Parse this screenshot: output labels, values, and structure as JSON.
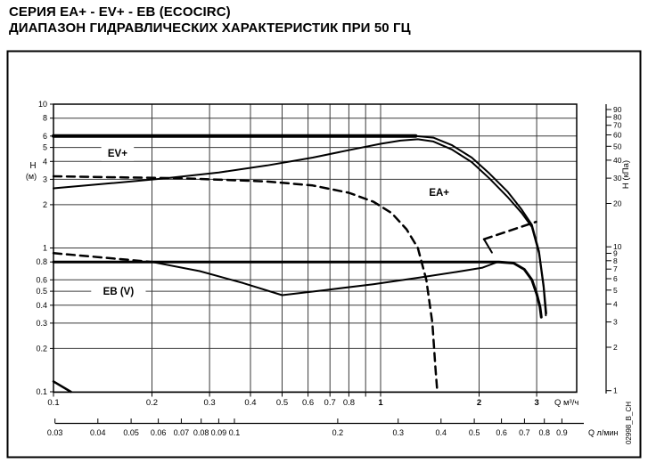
{
  "page": {
    "title_line1": "СЕРИЯ EA+ - EV+ - EB (ECOCIRC)",
    "title_line2": "ДИАПАЗОН ГИДРАВЛИЧЕСКИХ ХАРАКТЕРИСТИК ПРИ 50 ГЦ",
    "watermark": "02998_B_CH"
  },
  "chart_data": {
    "type": "line",
    "scale": "log-log",
    "title": "",
    "xlabel": "Q м³/ч",
    "xlabel_secondary": "Q л/мин",
    "ylabel_left": "H",
    "ylabel_left_unit": "(м)",
    "ylabel_right": "H (кПа)",
    "xlim": [
      0.1,
      4.0
    ],
    "ylim": [
      0.1,
      10
    ],
    "grid": true,
    "legend": "none",
    "grid_color": "#3a3a3a",
    "curve_color": "#000000",
    "x_gridlines": [
      0.1,
      0.2,
      0.3,
      0.4,
      0.5,
      0.6,
      0.7,
      0.8,
      0.9,
      1,
      2,
      3
    ],
    "x_ticks_m3h": [
      0.1,
      0.2,
      0.3,
      0.4,
      0.5,
      0.6,
      0.7,
      0.8,
      1,
      2,
      3
    ],
    "x_ticks_lmin": [
      0.03,
      0.04,
      0.05,
      0.06,
      0.07,
      0.08,
      0.09,
      0.1,
      0.2,
      0.3,
      0.4,
      0.5,
      0.6,
      0.7,
      0.8,
      0.9
    ],
    "y_ticks_m": [
      10,
      8,
      6,
      5,
      4,
      3,
      2,
      1,
      0.8,
      0.6,
      0.5,
      0.4,
      0.3,
      0.2,
      0.1
    ],
    "y_ticks_kpa": [
      90,
      80,
      70,
      60,
      50,
      40,
      30,
      20,
      10,
      9,
      8,
      7,
      6,
      5,
      4,
      3,
      2,
      1
    ],
    "series": [
      {
        "id": "ev-flat-top",
        "label": "EV+ upper limit 6 m",
        "style": "solid",
        "width": 4,
        "points": [
          [
            0.1,
            6
          ],
          [
            1.28,
            6
          ]
        ]
      },
      {
        "id": "envelope-right",
        "label": "family envelope right edge",
        "style": "solid",
        "width": 2,
        "points": [
          [
            1.28,
            6
          ],
          [
            1.45,
            5.85
          ],
          [
            1.65,
            5.2
          ],
          [
            1.9,
            4.25
          ],
          [
            2.15,
            3.3
          ],
          [
            2.45,
            2.45
          ],
          [
            2.7,
            1.85
          ],
          [
            2.9,
            1.45
          ],
          [
            3.05,
            0.95
          ],
          [
            3.15,
            0.55
          ],
          [
            3.21,
            0.35
          ]
        ]
      },
      {
        "id": "ea-max",
        "label": "EA+ max curve",
        "style": "solid",
        "width": 2,
        "points": [
          [
            0.1,
            2.6
          ],
          [
            0.15,
            2.82
          ],
          [
            0.22,
            3.05
          ],
          [
            0.32,
            3.35
          ],
          [
            0.45,
            3.75
          ],
          [
            0.62,
            4.25
          ],
          [
            0.82,
            4.85
          ],
          [
            1.0,
            5.3
          ],
          [
            1.15,
            5.58
          ],
          [
            1.3,
            5.7
          ],
          [
            1.45,
            5.5
          ],
          [
            1.65,
            4.85
          ],
          [
            1.9,
            3.95
          ],
          [
            2.15,
            3.05
          ],
          [
            2.45,
            2.25
          ],
          [
            2.7,
            1.75
          ],
          [
            2.9,
            1.4
          ],
          [
            3.05,
            0.92
          ],
          [
            3.15,
            0.53
          ],
          [
            3.2,
            0.34
          ]
        ]
      },
      {
        "id": "ev-max-dashed",
        "label": "EV+ max curve",
        "style": "dashed",
        "width": 2.5,
        "points": [
          [
            0.1,
            3.15
          ],
          [
            0.25,
            3.05
          ],
          [
            0.45,
            2.9
          ],
          [
            0.62,
            2.72
          ],
          [
            0.8,
            2.42
          ],
          [
            0.95,
            2.1
          ],
          [
            1.08,
            1.75
          ],
          [
            1.2,
            1.35
          ],
          [
            1.3,
            1.0
          ],
          [
            1.38,
            0.6
          ],
          [
            1.44,
            0.3
          ],
          [
            1.47,
            0.15
          ],
          [
            1.49,
            0.1
          ]
        ]
      },
      {
        "id": "ea-step-dashed",
        "label": "dashed step right",
        "style": "dashed",
        "width": 2.5,
        "points": [
          [
            2.07,
            1.15
          ],
          [
            2.99,
            1.52
          ]
        ]
      },
      {
        "id": "ea-step-solid",
        "label": "step connector",
        "style": "solid",
        "width": 2,
        "points": [
          [
            2.07,
            1.15
          ],
          [
            2.19,
            0.93
          ]
        ]
      },
      {
        "id": "eb-max-dashed",
        "label": "EB dashed limit",
        "style": "dashed",
        "width": 2.5,
        "points": [
          [
            0.1,
            0.92
          ],
          [
            0.2,
            0.8
          ]
        ]
      },
      {
        "id": "eb-top",
        "label": "EB upper limit 0.8 m",
        "style": "solid",
        "width": 3,
        "points": [
          [
            0.1,
            0.8
          ],
          [
            2.3,
            0.8
          ],
          [
            2.55,
            0.785
          ],
          [
            2.75,
            0.71
          ],
          [
            2.9,
            0.6
          ],
          [
            3.0,
            0.48
          ],
          [
            3.07,
            0.39
          ],
          [
            3.1,
            0.33
          ]
        ]
      },
      {
        "id": "eb-min",
        "label": "EB min curve",
        "style": "solid",
        "width": 2,
        "points": [
          [
            0.2,
            0.8
          ],
          [
            0.28,
            0.69
          ],
          [
            0.38,
            0.57
          ],
          [
            0.5,
            0.47
          ],
          [
            0.68,
            0.51
          ],
          [
            0.95,
            0.56
          ],
          [
            1.3,
            0.62
          ],
          [
            1.7,
            0.68
          ],
          [
            2.05,
            0.73
          ],
          [
            2.25,
            0.79
          ]
        ]
      },
      {
        "id": "corner-min",
        "label": "lower-left corner snippet",
        "style": "solid",
        "width": 2.5,
        "points": [
          [
            0.1,
            0.118
          ],
          [
            0.113,
            0.1
          ]
        ]
      }
    ],
    "labels": [
      {
        "id": "ev",
        "text": "EV+",
        "q": 0.157,
        "h": 4.55
      },
      {
        "id": "ea",
        "text": "EA+",
        "q": 1.51,
        "h": 2.44
      },
      {
        "id": "eb",
        "text": "EB (V)",
        "q": 0.158,
        "h": 0.5
      }
    ]
  }
}
